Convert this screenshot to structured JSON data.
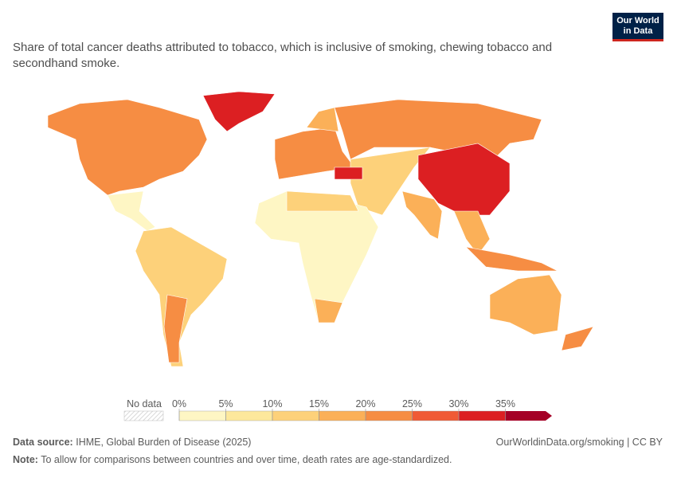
{
  "header": {
    "title": "Share of total cancer deaths attributed to tobacco, which is inclusive of smoking, chewing tobacco and secondhand smoke.",
    "logo": [
      "Our World",
      "in Data"
    ]
  },
  "legend": {
    "no_data": "No data",
    "ticks": [
      {
        "value": 0,
        "label": "0%"
      },
      {
        "value": 5,
        "label": "5%"
      },
      {
        "value": 10,
        "label": "10%"
      },
      {
        "value": 15,
        "label": "15%"
      },
      {
        "value": 20,
        "label": "20%"
      },
      {
        "value": 25,
        "label": "25%"
      },
      {
        "value": 30,
        "label": "30%"
      },
      {
        "value": 35,
        "label": "35%"
      }
    ],
    "colors": [
      "#fef6c4",
      "#fde89c",
      "#fdd17a",
      "#fbb058",
      "#f68d43",
      "#f05a35",
      "#dc1f22",
      "#a50026"
    ]
  },
  "footer": {
    "source_label": "Data source:",
    "source": "IHME, Global Burden of Disease (2025)",
    "link": "OurWorldinData.org/smoking | CC BY",
    "note_label": "Note:",
    "note": "To allow for comparisons between countries and over time, death rates are age-standardized."
  }
}
